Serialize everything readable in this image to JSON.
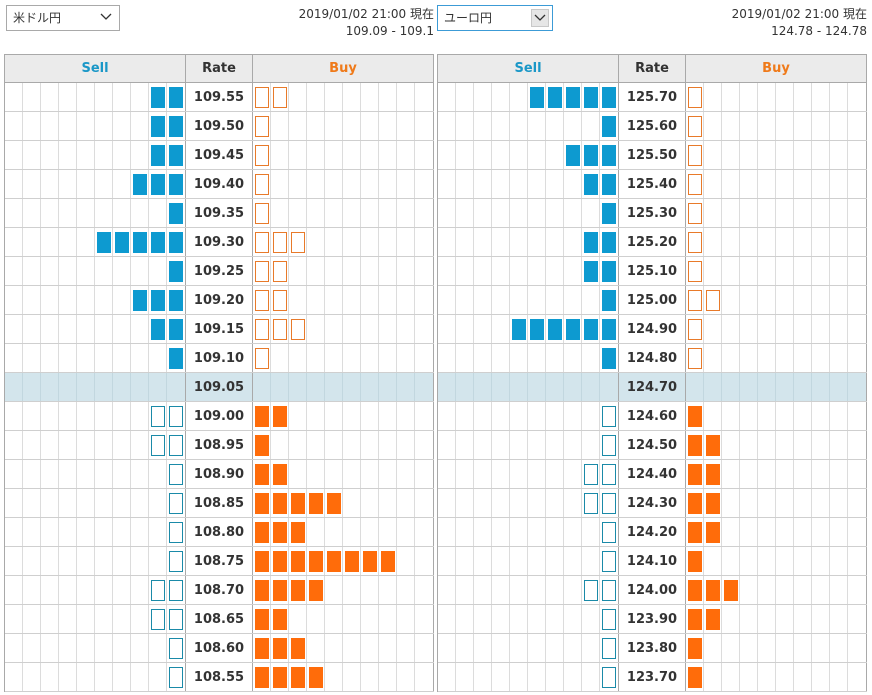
{
  "currency_select_1": {
    "value": "米ドル円"
  },
  "currency_select_2": {
    "value": "ユーロ円"
  },
  "timestamp_1": "2019/01/02 21:00 現在",
  "range_1": "109.09 - 109.1",
  "timestamp_2": "2019/01/02 21:00 現在",
  "range_2": "124.78 - 124.78",
  "colors": {
    "sell": "#0d9ad0",
    "buy": "#ff6c0a",
    "current_row": "#d3e5ec",
    "header_bg": "#ebebeb"
  },
  "books": [
    {
      "name": "usdjpy",
      "headers": {
        "sell": "Sell",
        "rate": "Rate",
        "buy": "Buy"
      },
      "sell_slots": 10,
      "buy_slots": 10,
      "current_rate": "109.05",
      "rows": [
        {
          "rate": "109.55",
          "sell": 2,
          "buy": 2
        },
        {
          "rate": "109.50",
          "sell": 2,
          "buy": 1
        },
        {
          "rate": "109.45",
          "sell": 2,
          "buy": 1
        },
        {
          "rate": "109.40",
          "sell": 3,
          "buy": 1
        },
        {
          "rate": "109.35",
          "sell": 1,
          "buy": 1
        },
        {
          "rate": "109.30",
          "sell": 5,
          "buy": 3
        },
        {
          "rate": "109.25",
          "sell": 1,
          "buy": 2
        },
        {
          "rate": "109.20",
          "sell": 3,
          "buy": 2
        },
        {
          "rate": "109.15",
          "sell": 2,
          "buy": 3
        },
        {
          "rate": "109.10",
          "sell": 1,
          "buy": 1
        },
        {
          "rate": "109.05",
          "sell": 0,
          "buy": 0
        },
        {
          "rate": "109.00",
          "sell": 2,
          "buy": 2
        },
        {
          "rate": "108.95",
          "sell": 2,
          "buy": 1
        },
        {
          "rate": "108.90",
          "sell": 1,
          "buy": 2
        },
        {
          "rate": "108.85",
          "sell": 1,
          "buy": 5
        },
        {
          "rate": "108.80",
          "sell": 1,
          "buy": 3
        },
        {
          "rate": "108.75",
          "sell": 1,
          "buy": 8
        },
        {
          "rate": "108.70",
          "sell": 2,
          "buy": 4
        },
        {
          "rate": "108.65",
          "sell": 2,
          "buy": 2
        },
        {
          "rate": "108.60",
          "sell": 1,
          "buy": 3
        },
        {
          "rate": "108.55",
          "sell": 1,
          "buy": 4
        }
      ]
    },
    {
      "name": "eurjpy",
      "headers": {
        "sell": "Sell",
        "rate": "Rate",
        "buy": "Buy"
      },
      "sell_slots": 10,
      "buy_slots": 10,
      "current_rate": "124.70",
      "rows": [
        {
          "rate": "125.70",
          "sell": 5,
          "buy": 1
        },
        {
          "rate": "125.60",
          "sell": 1,
          "buy": 1
        },
        {
          "rate": "125.50",
          "sell": 3,
          "buy": 1
        },
        {
          "rate": "125.40",
          "sell": 2,
          "buy": 1
        },
        {
          "rate": "125.30",
          "sell": 1,
          "buy": 1
        },
        {
          "rate": "125.20",
          "sell": 2,
          "buy": 1
        },
        {
          "rate": "125.10",
          "sell": 2,
          "buy": 1
        },
        {
          "rate": "125.00",
          "sell": 1,
          "buy": 2
        },
        {
          "rate": "124.90",
          "sell": 6,
          "buy": 1
        },
        {
          "rate": "124.80",
          "sell": 1,
          "buy": 1
        },
        {
          "rate": "124.70",
          "sell": 0,
          "buy": 0
        },
        {
          "rate": "124.60",
          "sell": 1,
          "buy": 1
        },
        {
          "rate": "124.50",
          "sell": 1,
          "buy": 2
        },
        {
          "rate": "124.40",
          "sell": 2,
          "buy": 2
        },
        {
          "rate": "124.30",
          "sell": 2,
          "buy": 2
        },
        {
          "rate": "124.20",
          "sell": 1,
          "buy": 2
        },
        {
          "rate": "124.10",
          "sell": 1,
          "buy": 1
        },
        {
          "rate": "124.00",
          "sell": 2,
          "buy": 3
        },
        {
          "rate": "123.90",
          "sell": 1,
          "buy": 2
        },
        {
          "rate": "123.80",
          "sell": 1,
          "buy": 1
        },
        {
          "rate": "123.70",
          "sell": 1,
          "buy": 1
        }
      ]
    }
  ]
}
